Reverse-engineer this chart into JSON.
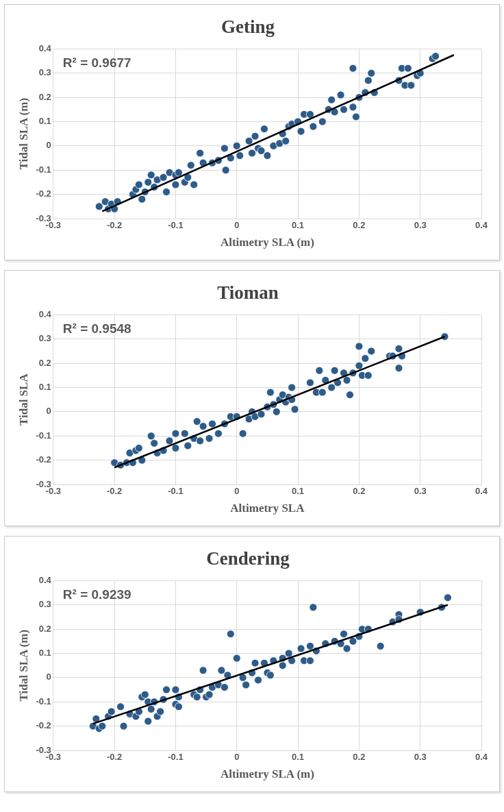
{
  "chart_data": [
    {
      "type": "scatter",
      "title": "Geting",
      "xlabel": "Altimetry SLA (m)",
      "ylabel": "Tidal SLA (m)",
      "xlim": [
        -0.3,
        0.4
      ],
      "ylim": [
        -0.3,
        0.4
      ],
      "xticks": [
        -0.3,
        -0.2,
        -0.1,
        0,
        0.1,
        0.2,
        0.3,
        0.4
      ],
      "yticks": [
        -0.3,
        -0.2,
        -0.1,
        0,
        0.1,
        0.2,
        0.3,
        0.4
      ],
      "grid": true,
      "legend": false,
      "annotations": [
        "R² = 0.9677"
      ],
      "series": [
        {
          "type": "scatter",
          "marker": "circle",
          "color": "#2e5c8a",
          "x": [
            -0.225,
            -0.215,
            -0.21,
            -0.205,
            -0.2,
            -0.195,
            -0.17,
            -0.165,
            -0.16,
            -0.155,
            -0.15,
            -0.145,
            -0.14,
            -0.135,
            -0.13,
            -0.12,
            -0.115,
            -0.11,
            -0.1,
            -0.1,
            -0.095,
            -0.085,
            -0.08,
            -0.075,
            -0.07,
            -0.06,
            -0.055,
            -0.04,
            -0.03,
            -0.02,
            -0.018,
            -0.01,
            0,
            0.005,
            0.02,
            0.025,
            0.03,
            0.035,
            0.04,
            0.045,
            0.05,
            0.06,
            0.07,
            0.075,
            0.08,
            0.085,
            0.09,
            0.1,
            0.105,
            0.11,
            0.12,
            0.125,
            0.14,
            0.15,
            0.155,
            0.16,
            0.17,
            0.175,
            0.19,
            0.19,
            0.195,
            0.2,
            0.21,
            0.215,
            0.22,
            0.225,
            0.265,
            0.27,
            0.275,
            0.28,
            0.285,
            0.295,
            0.3,
            0.32,
            0.325
          ],
          "values": [
            -0.25,
            -0.23,
            -0.26,
            -0.24,
            -0.26,
            -0.23,
            -0.2,
            -0.18,
            -0.16,
            -0.22,
            -0.19,
            -0.15,
            -0.12,
            -0.17,
            -0.14,
            -0.13,
            -0.19,
            -0.11,
            -0.16,
            -0.12,
            -0.11,
            -0.15,
            -0.13,
            -0.08,
            -0.16,
            -0.03,
            -0.07,
            -0.07,
            -0.06,
            -0.01,
            -0.1,
            -0.05,
            0,
            -0.04,
            0.02,
            -0.03,
            0.04,
            -0.01,
            -0.02,
            0.07,
            -0.04,
            0,
            0.01,
            0.05,
            0.02,
            0.08,
            0.09,
            0.1,
            0.06,
            0.13,
            0.13,
            0.08,
            0.1,
            0.15,
            0.19,
            0.14,
            0.21,
            0.15,
            0.32,
            0.16,
            0.12,
            0.2,
            0.22,
            0.27,
            0.3,
            0.22,
            0.27,
            0.32,
            0.25,
            0.32,
            0.25,
            0.29,
            0.3,
            0.36,
            0.37
          ]
        },
        {
          "type": "line",
          "color": "#000000",
          "x": [
            -0.22,
            0.355
          ],
          "values": [
            -0.27,
            0.375
          ]
        }
      ]
    },
    {
      "type": "scatter",
      "title": "Tioman",
      "xlabel": "Altimetry SLA",
      "ylabel": "Tidal SLA",
      "xlim": [
        -0.3,
        0.4
      ],
      "ylim": [
        -0.3,
        0.4
      ],
      "xticks": [
        -0.3,
        -0.2,
        -0.1,
        0,
        0.1,
        0.2,
        0.3,
        0.4
      ],
      "yticks": [
        -0.3,
        -0.2,
        -0.1,
        0,
        0.1,
        0.2,
        0.3,
        0.4
      ],
      "grid": true,
      "legend": false,
      "annotations": [
        "R² = 0.9548"
      ],
      "series": [
        {
          "type": "scatter",
          "marker": "circle",
          "color": "#2e5c8a",
          "x": [
            -0.2,
            -0.19,
            -0.18,
            -0.175,
            -0.17,
            -0.165,
            -0.16,
            -0.155,
            -0.14,
            -0.135,
            -0.13,
            -0.12,
            -0.11,
            -0.1,
            -0.1,
            -0.085,
            -0.08,
            -0.07,
            -0.065,
            -0.06,
            -0.055,
            -0.045,
            -0.04,
            -0.03,
            -0.02,
            -0.01,
            0,
            0.01,
            0.02,
            0.025,
            0.03,
            0.04,
            0.05,
            0.055,
            0.06,
            0.065,
            0.07,
            0.075,
            0.08,
            0.085,
            0.09,
            0.09,
            0.095,
            0.12,
            0.13,
            0.135,
            0.14,
            0.145,
            0.155,
            0.16,
            0.165,
            0.175,
            0.18,
            0.185,
            0.19,
            0.2,
            0.2,
            0.205,
            0.21,
            0.22,
            0.215,
            0.25,
            0.255,
            0.265,
            0.265,
            0.27,
            0.34
          ],
          "values": [
            -0.21,
            -0.22,
            -0.21,
            -0.17,
            -0.21,
            -0.16,
            -0.15,
            -0.2,
            -0.1,
            -0.13,
            -0.17,
            -0.16,
            -0.12,
            -0.09,
            -0.15,
            -0.09,
            -0.14,
            -0.11,
            -0.04,
            -0.12,
            -0.06,
            -0.11,
            -0.05,
            -0.09,
            -0.05,
            -0.02,
            -0.02,
            -0.09,
            -0.03,
            0,
            -0.02,
            -0.01,
            0.02,
            0.08,
            0.03,
            0,
            0.05,
            0.07,
            0.04,
            0.06,
            0.1,
            0.05,
            0.01,
            0.12,
            0.08,
            0.17,
            0.08,
            0.13,
            0.1,
            0.17,
            0.12,
            0.16,
            0.13,
            0.07,
            0.16,
            0.27,
            0.19,
            0.15,
            0.22,
            0.25,
            0.15,
            0.23,
            0.23,
            0.26,
            0.18,
            0.23,
            0.31
          ]
        },
        {
          "type": "line",
          "color": "#000000",
          "x": [
            -0.2,
            0.34
          ],
          "values": [
            -0.23,
            0.31
          ]
        }
      ]
    },
    {
      "type": "scatter",
      "title": "Cendering",
      "xlabel": "Altimetry SLA (m)",
      "ylabel": "Tidal SLA (m)",
      "xlim": [
        -0.3,
        0.4
      ],
      "ylim": [
        -0.3,
        0.4
      ],
      "xticks": [
        -0.3,
        -0.2,
        -0.1,
        0,
        0.1,
        0.2,
        0.3,
        0.4
      ],
      "yticks": [
        -0.3,
        -0.2,
        -0.1,
        0,
        0.1,
        0.2,
        0.3,
        0.4
      ],
      "grid": true,
      "legend": false,
      "annotations": [
        "R² = 0.9239"
      ],
      "series": [
        {
          "type": "scatter",
          "marker": "circle",
          "color": "#2e5c8a",
          "x": [
            -0.235,
            -0.23,
            -0.225,
            -0.22,
            -0.21,
            -0.205,
            -0.19,
            -0.185,
            -0.175,
            -0.165,
            -0.16,
            -0.155,
            -0.15,
            -0.145,
            -0.145,
            -0.14,
            -0.135,
            -0.13,
            -0.125,
            -0.12,
            -0.115,
            -0.1,
            -0.1,
            -0.095,
            -0.095,
            -0.07,
            -0.065,
            -0.06,
            -0.055,
            -0.05,
            -0.045,
            -0.04,
            -0.03,
            -0.025,
            -0.02,
            -0.015,
            -0.01,
            0,
            0.01,
            0.015,
            0.025,
            0.03,
            0.035,
            0.045,
            0.05,
            0.055,
            0.06,
            0.075,
            0.075,
            0.085,
            0.09,
            0.105,
            0.11,
            0.12,
            0.12,
            0.125,
            0.13,
            0.145,
            0.16,
            0.17,
            0.175,
            0.18,
            0.19,
            0.2,
            0.205,
            0.215,
            0.235,
            0.255,
            0.265,
            0.265,
            0.3,
            0.335,
            0.345
          ],
          "values": [
            -0.2,
            -0.17,
            -0.21,
            -0.2,
            -0.16,
            -0.14,
            -0.12,
            -0.2,
            -0.15,
            -0.16,
            -0.14,
            -0.08,
            -0.07,
            -0.1,
            -0.18,
            -0.13,
            -0.1,
            -0.16,
            -0.14,
            -0.09,
            -0.05,
            -0.05,
            -0.11,
            -0.08,
            -0.12,
            -0.07,
            -0.08,
            -0.05,
            0.03,
            -0.08,
            -0.07,
            -0.04,
            -0.03,
            0.03,
            -0.04,
            0.01,
            0.18,
            0.08,
            0,
            -0.03,
            0.02,
            0.06,
            -0.01,
            0.06,
            0.02,
            0.01,
            0.07,
            0.05,
            0.08,
            0.1,
            0.07,
            0.12,
            0.07,
            0.13,
            0.07,
            0.29,
            0.11,
            0.14,
            0.15,
            0.14,
            0.18,
            0.12,
            0.15,
            0.17,
            0.2,
            0.2,
            0.13,
            0.23,
            0.26,
            0.24,
            0.27,
            0.29,
            0.33
          ]
        },
        {
          "type": "line",
          "color": "#000000",
          "x": [
            -0.235,
            0.345
          ],
          "values": [
            -0.19,
            0.3
          ]
        }
      ]
    }
  ]
}
